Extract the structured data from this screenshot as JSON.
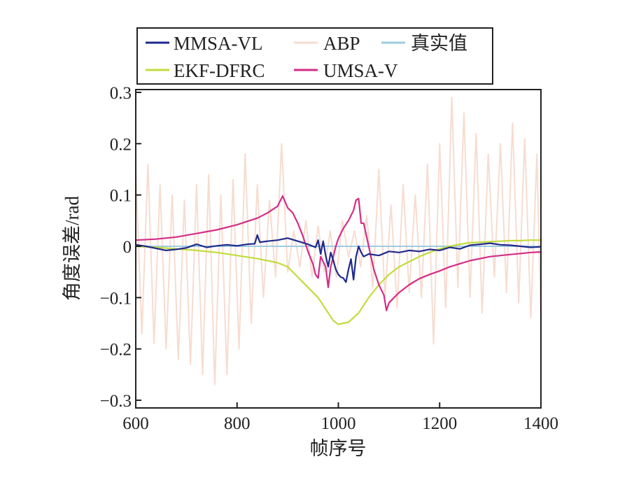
{
  "chart_data": {
    "type": "line",
    "title": "",
    "xlabel": "帧序号",
    "ylabel": "角度误差/rad",
    "xlim": [
      600,
      1400
    ],
    "ylim": [
      -0.3,
      0.3
    ],
    "xticks": [
      600,
      800,
      1000,
      1200,
      1400
    ],
    "xtick_labels": [
      "600",
      "800",
      "1000",
      "1200",
      "1400"
    ],
    "yticks": [
      0.3,
      0.2,
      0.1,
      0,
      -0.1,
      -0.2,
      -0.3
    ],
    "ytick_labels": [
      "0.3",
      "0.2",
      "0.1",
      "0",
      "−0.1",
      "−0.2",
      "−0.3"
    ],
    "grid": false,
    "legend_position": "top",
    "series": [
      {
        "name": "MMSA-VL",
        "color": "#1f2a8c",
        "x": [
          600,
          620,
          640,
          660,
          680,
          700,
          720,
          740,
          760,
          780,
          800,
          820,
          835,
          840,
          845,
          860,
          880,
          900,
          920,
          940,
          950,
          955,
          960,
          965,
          970,
          975,
          980,
          985,
          990,
          995,
          1000,
          1005,
          1010,
          1015,
          1020,
          1025,
          1030,
          1035,
          1040,
          1045,
          1050,
          1060,
          1080,
          1100,
          1120,
          1140,
          1160,
          1180,
          1200,
          1220,
          1240,
          1260,
          1280,
          1300,
          1320,
          1340,
          1360,
          1380,
          1400
        ],
        "values": [
          0.003,
          0.0,
          -0.004,
          -0.008,
          -0.006,
          -0.003,
          0.004,
          -0.002,
          0.001,
          0.003,
          0.001,
          0.004,
          0.005,
          0.022,
          0.008,
          0.01,
          0.012,
          0.016,
          0.01,
          0.004,
          0.0,
          -0.002,
          0.012,
          -0.015,
          0.01,
          -0.018,
          -0.04,
          -0.012,
          -0.028,
          -0.045,
          -0.055,
          -0.06,
          -0.062,
          -0.07,
          -0.045,
          -0.025,
          -0.065,
          -0.02,
          0.0,
          -0.012,
          -0.02,
          -0.015,
          -0.018,
          -0.01,
          -0.012,
          -0.008,
          -0.01,
          -0.006,
          -0.008,
          -0.002,
          -0.005,
          0.002,
          0.004,
          0.006,
          0.003,
          0.002,
          0.0,
          -0.002,
          -0.001
        ]
      },
      {
        "name": "ABP",
        "color": "#f7dcd0",
        "x": [
          600,
          612,
          624,
          636,
          648,
          660,
          672,
          684,
          696,
          708,
          720,
          732,
          744,
          756,
          768,
          780,
          792,
          804,
          816,
          828,
          840,
          852,
          864,
          876,
          888,
          900,
          912,
          924,
          936,
          948,
          960,
          972,
          984,
          996,
          1008,
          1020,
          1032,
          1044,
          1056,
          1068,
          1080,
          1092,
          1104,
          1116,
          1128,
          1140,
          1152,
          1164,
          1176,
          1188,
          1200,
          1212,
          1224,
          1236,
          1248,
          1260,
          1272,
          1284,
          1296,
          1308,
          1320,
          1332,
          1344,
          1356,
          1368,
          1380,
          1392,
          1400
        ],
        "values": [
          0.15,
          -0.17,
          0.16,
          -0.19,
          0.12,
          -0.2,
          0.1,
          -0.22,
          0.09,
          -0.23,
          0.12,
          -0.25,
          0.14,
          -0.27,
          0.1,
          -0.25,
          0.13,
          -0.2,
          0.18,
          -0.15,
          0.12,
          -0.1,
          0.09,
          -0.06,
          0.2,
          -0.05,
          0.03,
          -0.04,
          0.05,
          -0.06,
          0.04,
          -0.05,
          0.03,
          -0.06,
          0.05,
          -0.02,
          0.03,
          -0.04,
          0.06,
          -0.08,
          0.15,
          -0.1,
          0.08,
          -0.12,
          0.12,
          -0.09,
          0.1,
          -0.1,
          0.16,
          -0.19,
          0.2,
          -0.12,
          0.29,
          -0.08,
          0.26,
          -0.1,
          0.22,
          -0.13,
          0.18,
          -0.06,
          0.2,
          -0.09,
          0.24,
          -0.11,
          0.21,
          -0.14,
          0.18,
          -0.15
        ]
      },
      {
        "name": "真实值",
        "color": "#9ecbe0",
        "x": [
          600,
          1400
        ],
        "values": [
          0,
          0
        ]
      },
      {
        "name": "EKF-DFRC",
        "color": "#c2dc3c",
        "x": [
          600,
          640,
          680,
          720,
          760,
          800,
          840,
          860,
          880,
          900,
          920,
          940,
          960,
          980,
          990,
          1000,
          1010,
          1020,
          1040,
          1060,
          1080,
          1100,
          1120,
          1140,
          1160,
          1180,
          1200,
          1220,
          1240,
          1260,
          1280,
          1300,
          1320,
          1340,
          1360,
          1380,
          1400
        ],
        "values": [
          0.0,
          -0.002,
          -0.005,
          -0.008,
          -0.012,
          -0.018,
          -0.024,
          -0.028,
          -0.032,
          -0.04,
          -0.06,
          -0.08,
          -0.1,
          -0.13,
          -0.145,
          -0.152,
          -0.15,
          -0.148,
          -0.13,
          -0.1,
          -0.075,
          -0.055,
          -0.04,
          -0.03,
          -0.02,
          -0.012,
          -0.005,
          0.0,
          0.004,
          0.007,
          0.008,
          0.009,
          0.01,
          0.011,
          0.011,
          0.012,
          0.012
        ]
      },
      {
        "name": "UMSA-V",
        "color": "#d42d86",
        "x": [
          600,
          640,
          680,
          720,
          760,
          800,
          840,
          860,
          880,
          890,
          900,
          910,
          920,
          930,
          940,
          950,
          955,
          960,
          965,
          975,
          980,
          985,
          990,
          995,
          1000,
          1010,
          1020,
          1030,
          1035,
          1040,
          1045,
          1050,
          1060,
          1070,
          1080,
          1090,
          1095,
          1100,
          1110,
          1120,
          1140,
          1160,
          1180,
          1200,
          1220,
          1240,
          1260,
          1280,
          1300,
          1320,
          1340,
          1360,
          1380,
          1400
        ],
        "values": [
          0.012,
          0.014,
          0.018,
          0.025,
          0.032,
          0.042,
          0.055,
          0.065,
          0.078,
          0.098,
          0.075,
          0.065,
          0.045,
          0.02,
          -0.01,
          -0.035,
          -0.055,
          -0.062,
          -0.02,
          -0.04,
          -0.08,
          -0.04,
          -0.02,
          0.0,
          0.015,
          0.035,
          0.05,
          0.07,
          0.09,
          0.093,
          0.045,
          0.045,
          0.0,
          -0.045,
          -0.075,
          -0.095,
          -0.125,
          -0.11,
          -0.1,
          -0.09,
          -0.075,
          -0.063,
          -0.055,
          -0.048,
          -0.04,
          -0.034,
          -0.028,
          -0.024,
          -0.02,
          -0.018,
          -0.016,
          -0.014,
          -0.012,
          -0.011
        ]
      }
    ]
  }
}
